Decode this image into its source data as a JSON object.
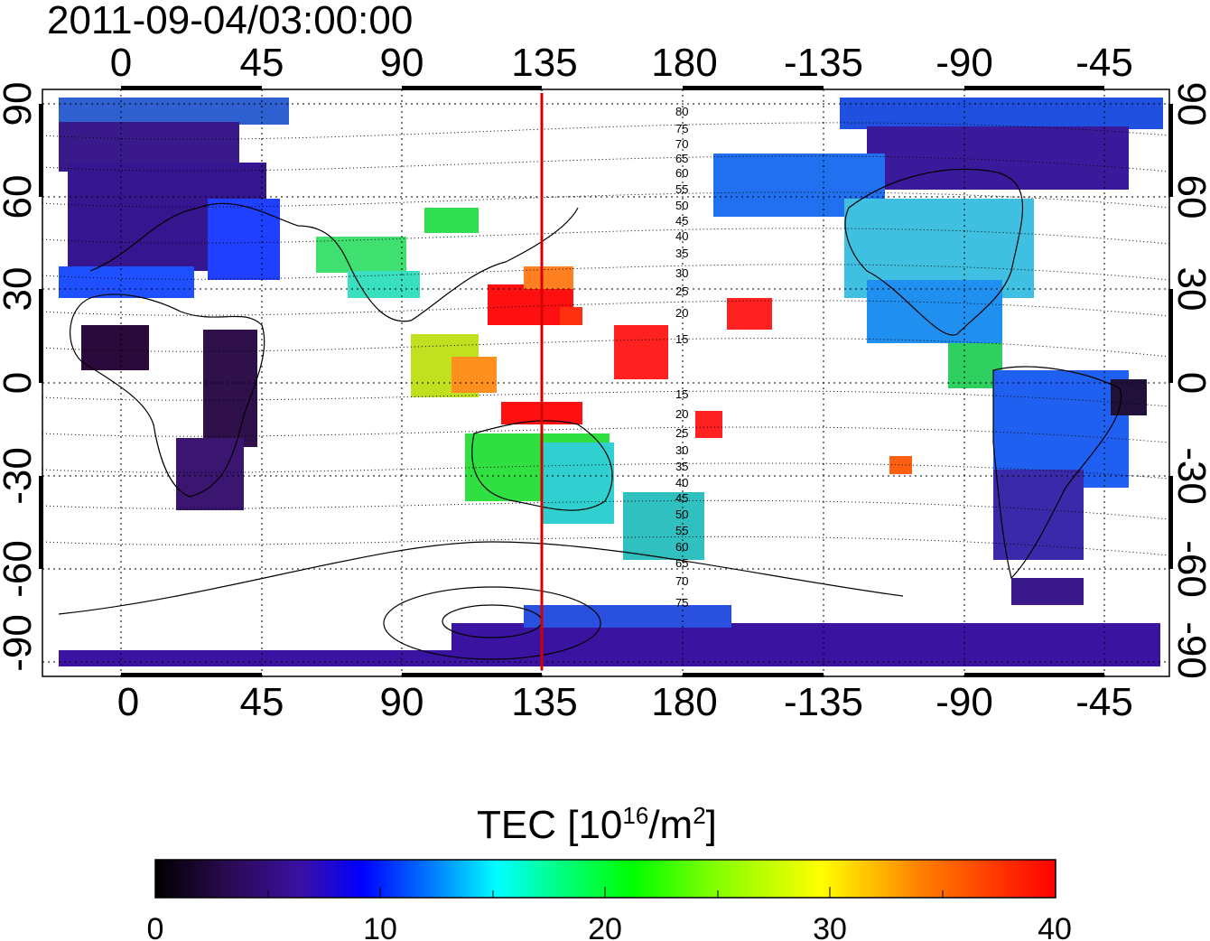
{
  "title": "2011-09-04/03:00:00",
  "map": {
    "lon_ticks": [
      "0",
      "45",
      "90",
      "135",
      "180",
      "-135",
      "-90",
      "-45"
    ],
    "lat_ticks": [
      "90",
      "60",
      "30",
      "0",
      "-30",
      "-60",
      "-90"
    ],
    "meridian_marker_lon": "135",
    "marker_color": "#d40000",
    "mlat_labels_north": [
      "80",
      "75",
      "70",
      "65",
      "60",
      "55",
      "50",
      "45",
      "40",
      "35",
      "30",
      "25",
      "20",
      "15"
    ],
    "mlat_labels_south": [
      "15",
      "20",
      "25",
      "30",
      "35",
      "40",
      "45",
      "50",
      "55",
      "60",
      "65",
      "70",
      "75"
    ]
  },
  "colorbar": {
    "label_main": "TEC  [10",
    "label_exp": "16",
    "label_unit": "/m",
    "label_unit_exp": "2",
    "label_close": "]",
    "ticks": [
      "0",
      "10",
      "20",
      "30",
      "40"
    ],
    "range": [
      0,
      40
    ],
    "colors": [
      "#000000",
      "#2a0a50",
      "#3a10a0",
      "#0000ff",
      "#0080ff",
      "#00ffff",
      "#00ff80",
      "#00ff00",
      "#80ff00",
      "#ffff00",
      "#ff8000",
      "#ff0000"
    ]
  }
}
